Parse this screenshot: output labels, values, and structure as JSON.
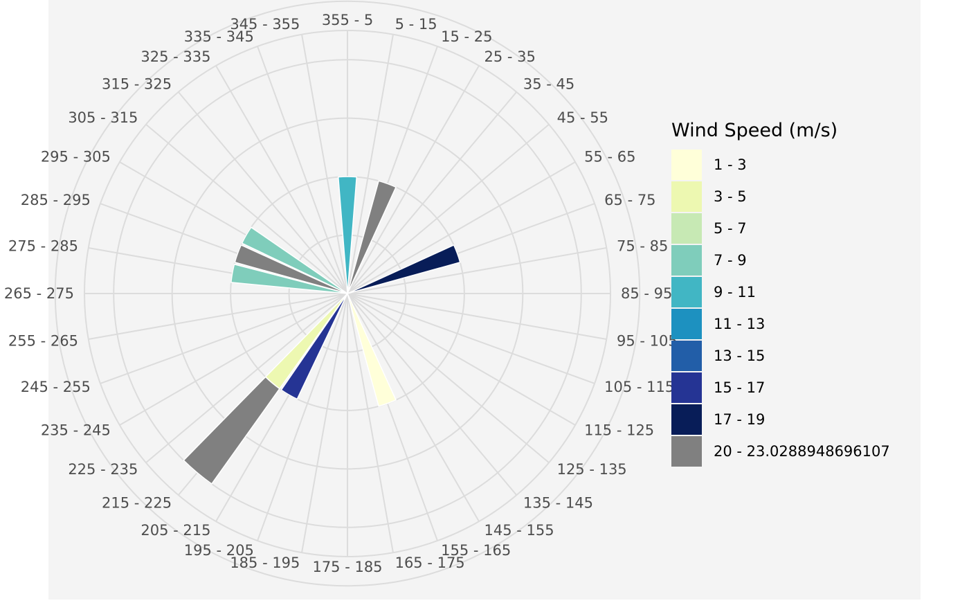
{
  "chart_data": {
    "type": "bar",
    "coordinate_system": "polar",
    "legend_position": "right",
    "legend": {
      "title": "Wind Speed (m/s)",
      "items": [
        {
          "label": "1 - 3",
          "color": "#FFFFD9"
        },
        {
          "label": "3 - 5",
          "color": "#EDF8B1"
        },
        {
          "label": "5 - 7",
          "color": "#C7E9B4"
        },
        {
          "label": "7 - 9",
          "color": "#7FCDBB"
        },
        {
          "label": "9 - 11",
          "color": "#41B6C4"
        },
        {
          "label": "11 - 13",
          "color": "#1D91C0"
        },
        {
          "label": "13 - 15",
          "color": "#225EA8"
        },
        {
          "label": "15 - 17",
          "color": "#253494"
        },
        {
          "label": "17 - 19",
          "color": "#081D58"
        },
        {
          "label": "20 - 23.0288948696107",
          "color": "#808080"
        }
      ]
    },
    "categories": [
      "355 - 5",
      "5 - 15",
      "15 - 25",
      "25 - 35",
      "35 - 45",
      "45 - 55",
      "55 - 65",
      "65 - 75",
      "75 - 85",
      "85 - 95",
      "95 - 105",
      "105 - 115",
      "115 - 125",
      "125 - 135",
      "135 - 145",
      "145 - 155",
      "155 - 165",
      "165 - 175",
      "175 - 185",
      "185 - 195",
      "195 - 205",
      "205 - 215",
      "215 - 225",
      "225 - 235",
      "235 - 245",
      "245 - 255",
      "255 - 265",
      "265 - 275",
      "275 - 285",
      "285 - 295",
      "295 - 305",
      "305 - 315",
      "315 - 325",
      "325 - 335",
      "335 - 345",
      "345 - 355"
    ],
    "grid": true,
    "r_gridlines": [
      1,
      2,
      3,
      4,
      5
    ],
    "r_max": 4.5,
    "bars": [
      {
        "direction": "355 - 5",
        "layers": [
          {
            "speed": "9 - 11",
            "value": 2
          }
        ]
      },
      {
        "direction": "15 - 25",
        "layers": [
          {
            "speed": "20 - 23.0288948696107",
            "value": 2
          }
        ]
      },
      {
        "direction": "65 - 75",
        "layers": [
          {
            "speed": "17 - 19",
            "value": 2
          }
        ]
      },
      {
        "direction": "155 - 165",
        "layers": [
          {
            "speed": "1 - 3",
            "value": 2
          }
        ]
      },
      {
        "direction": "205 - 215",
        "layers": [
          {
            "speed": "15 - 17",
            "value": 2
          }
        ]
      },
      {
        "direction": "215 - 225",
        "layers": [
          {
            "speed": "3 - 5",
            "value": 2
          },
          {
            "speed": "20 - 23.0288948696107",
            "value": 2
          }
        ]
      },
      {
        "direction": "275 - 285",
        "layers": [
          {
            "speed": "7 - 9",
            "value": 2
          }
        ]
      },
      {
        "direction": "285 - 295",
        "layers": [
          {
            "speed": "20 - 23.0288948696107",
            "value": 2
          }
        ]
      },
      {
        "direction": "295 - 305",
        "layers": [
          {
            "speed": "7 - 9",
            "value": 2
          }
        ]
      }
    ]
  }
}
